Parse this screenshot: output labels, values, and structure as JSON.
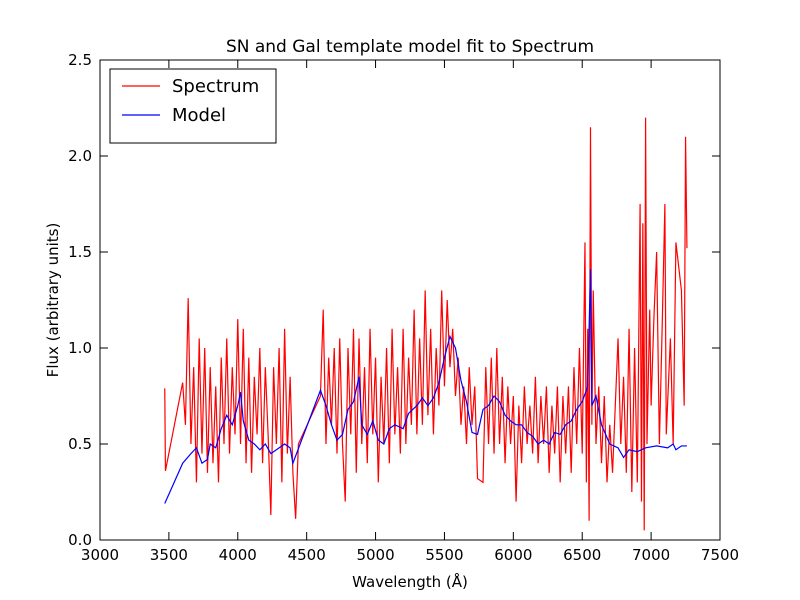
{
  "chart_data": {
    "type": "line",
    "title": "SN and Gal template model fit to Spectrum",
    "xlabel": "Wavelength (Å)",
    "ylabel": "Flux (arbitrary units)",
    "xlim": [
      3000,
      7500
    ],
    "xticks": [
      3000,
      3500,
      4000,
      4500,
      5000,
      5500,
      6000,
      6500,
      7000,
      7500
    ],
    "ylim": [
      0,
      2.5
    ],
    "yticks": [
      {
        "value": 0,
        "label": "0.0"
      },
      0.5,
      {
        "value": 1,
        "label": "1.0"
      },
      1.5,
      {
        "value": 2,
        "label": "2.0"
      },
      2.5
    ],
    "grid": false,
    "legend": "upper-left",
    "series": [
      {
        "name": "Spectrum",
        "color": "#ff0000",
        "x": [
          3470,
          3475,
          3600,
          3620,
          3640,
          3660,
          3680,
          3700,
          3720,
          3740,
          3760,
          3780,
          3800,
          3820,
          3840,
          3860,
          3880,
          3900,
          3920,
          3940,
          3960,
          3980,
          4000,
          4020,
          4040,
          4060,
          4080,
          4100,
          4120,
          4140,
          4160,
          4180,
          4200,
          4220,
          4240,
          4260,
          4280,
          4300,
          4320,
          4340,
          4360,
          4380,
          4400,
          4420,
          4440,
          4600,
          4620,
          4640,
          4660,
          4680,
          4700,
          4720,
          4740,
          4760,
          4780,
          4800,
          4820,
          4840,
          4860,
          4880,
          4900,
          4920,
          4940,
          4960,
          4980,
          5000,
          5020,
          5040,
          5060,
          5080,
          5100,
          5120,
          5140,
          5160,
          5180,
          5200,
          5220,
          5240,
          5260,
          5280,
          5300,
          5320,
          5340,
          5360,
          5380,
          5400,
          5420,
          5440,
          5460,
          5480,
          5500,
          5520,
          5540,
          5560,
          5580,
          5600,
          5620,
          5640,
          5660,
          5680,
          5700,
          5720,
          5740,
          5780,
          5800,
          5820,
          5840,
          5860,
          5880,
          5900,
          5920,
          5940,
          5960,
          5980,
          6000,
          6020,
          6040,
          6060,
          6080,
          6100,
          6120,
          6140,
          6160,
          6180,
          6200,
          6220,
          6240,
          6260,
          6280,
          6300,
          6320,
          6340,
          6360,
          6380,
          6400,
          6420,
          6440,
          6460,
          6480,
          6500,
          6520,
          6530,
          6540,
          6550,
          6560,
          6570,
          6580,
          6600,
          6620,
          6640,
          6660,
          6680,
          6700,
          6720,
          6760,
          6780,
          6800,
          6820,
          6840,
          6860,
          6880,
          6900,
          6920,
          6930,
          6940,
          6950,
          6960,
          6970,
          6990,
          7000,
          7020,
          7040,
          7060,
          7080,
          7100,
          7110,
          7140,
          7160,
          7180,
          7220,
          7240,
          7250,
          7260
        ],
        "values": [
          0.79,
          0.36,
          0.82,
          0.6,
          1.26,
          0.5,
          0.9,
          0.3,
          1.05,
          0.45,
          1.0,
          0.35,
          0.9,
          0.4,
          0.8,
          0.3,
          0.95,
          0.5,
          1.05,
          0.45,
          0.9,
          0.55,
          1.15,
          0.5,
          1.1,
          0.4,
          0.95,
          0.35,
          0.85,
          0.55,
          1.0,
          0.4,
          0.9,
          0.55,
          0.13,
          0.9,
          0.5,
          1.0,
          0.3,
          1.1,
          0.45,
          0.85,
          0.35,
          0.11,
          0.5,
          0.75,
          1.2,
          0.5,
          0.95,
          0.6,
          1.0,
          0.45,
          1.05,
          0.5,
          0.2,
          1.0,
          0.55,
          1.1,
          0.35,
          1.05,
          0.5,
          0.9,
          0.4,
          1.1,
          0.55,
          0.95,
          0.3,
          0.85,
          0.5,
          1.0,
          0.4,
          1.1,
          0.55,
          0.9,
          0.45,
          1.1,
          0.5,
          0.95,
          0.6,
          1.2,
          0.55,
          1.05,
          0.6,
          1.3,
          0.65,
          1.1,
          0.55,
          1.0,
          0.7,
          1.3,
          0.8,
          1.25,
          0.9,
          1.1,
          0.75,
          0.95,
          0.6,
          0.8,
          0.5,
          0.9,
          0.6,
          0.8,
          0.32,
          0.3,
          0.9,
          0.5,
          0.95,
          0.45,
          1.0,
          0.5,
          0.85,
          0.4,
          0.8,
          0.5,
          0.75,
          0.2,
          0.7,
          0.4,
          0.8,
          0.5,
          0.7,
          0.45,
          0.85,
          0.4,
          0.75,
          0.5,
          0.8,
          0.35,
          0.7,
          0.45,
          0.8,
          0.3,
          0.75,
          0.45,
          0.8,
          0.35,
          0.9,
          0.5,
          1.0,
          0.45,
          1.55,
          0.3,
          1.1,
          0.1,
          2.15,
          0.6,
          1.3,
          0.5,
          0.8,
          0.4,
          0.75,
          0.3,
          0.6,
          0.35,
          1.05,
          0.5,
          0.85,
          0.35,
          1.1,
          0.25,
          1.0,
          0.3,
          1.75,
          0.2,
          1.65,
          0.05,
          2.2,
          0.5,
          1.2,
          0.7,
          1.15,
          1.5,
          0.5,
          1.1,
          1.75,
          0.55,
          1.05,
          0.5,
          1.55,
          1.3,
          0.7,
          2.1,
          1.52
        ]
      },
      {
        "name": "Model",
        "color": "#0000ff",
        "x": [
          3470,
          3600,
          3660,
          3700,
          3740,
          3780,
          3800,
          3840,
          3880,
          3920,
          3960,
          4000,
          4020,
          4040,
          4080,
          4120,
          4160,
          4200,
          4240,
          4300,
          4340,
          4380,
          4400,
          4600,
          4640,
          4680,
          4720,
          4760,
          4800,
          4840,
          4880,
          4900,
          4940,
          4980,
          5020,
          5060,
          5100,
          5140,
          5200,
          5240,
          5300,
          5340,
          5380,
          5420,
          5460,
          5500,
          5540,
          5580,
          5620,
          5660,
          5700,
          5740,
          5780,
          5820,
          5860,
          5900,
          5940,
          5980,
          6020,
          6060,
          6100,
          6140,
          6180,
          6220,
          6260,
          6300,
          6340,
          6380,
          6420,
          6460,
          6500,
          6540,
          6560,
          6570,
          6600,
          6640,
          6700,
          6760,
          6800,
          6840,
          6900,
          6960,
          7040,
          7120,
          7160,
          7180,
          7220,
          7260
        ],
        "values": [
          0.19,
          0.4,
          0.45,
          0.48,
          0.4,
          0.42,
          0.5,
          0.48,
          0.58,
          0.65,
          0.6,
          0.7,
          0.77,
          0.62,
          0.52,
          0.5,
          0.47,
          0.5,
          0.45,
          0.48,
          0.5,
          0.48,
          0.4,
          0.78,
          0.7,
          0.6,
          0.52,
          0.55,
          0.68,
          0.72,
          0.85,
          0.6,
          0.55,
          0.62,
          0.52,
          0.5,
          0.58,
          0.6,
          0.58,
          0.66,
          0.7,
          0.74,
          0.7,
          0.74,
          0.82,
          0.95,
          1.06,
          1.0,
          0.83,
          0.72,
          0.56,
          0.55,
          0.68,
          0.7,
          0.75,
          0.72,
          0.65,
          0.62,
          0.6,
          0.6,
          0.56,
          0.54,
          0.5,
          0.52,
          0.5,
          0.56,
          0.55,
          0.6,
          0.62,
          0.68,
          0.72,
          0.8,
          1.41,
          0.7,
          0.75,
          0.6,
          0.5,
          0.48,
          0.43,
          0.47,
          0.46,
          0.48,
          0.49,
          0.48,
          0.5,
          0.47,
          0.49,
          0.49
        ]
      }
    ]
  }
}
